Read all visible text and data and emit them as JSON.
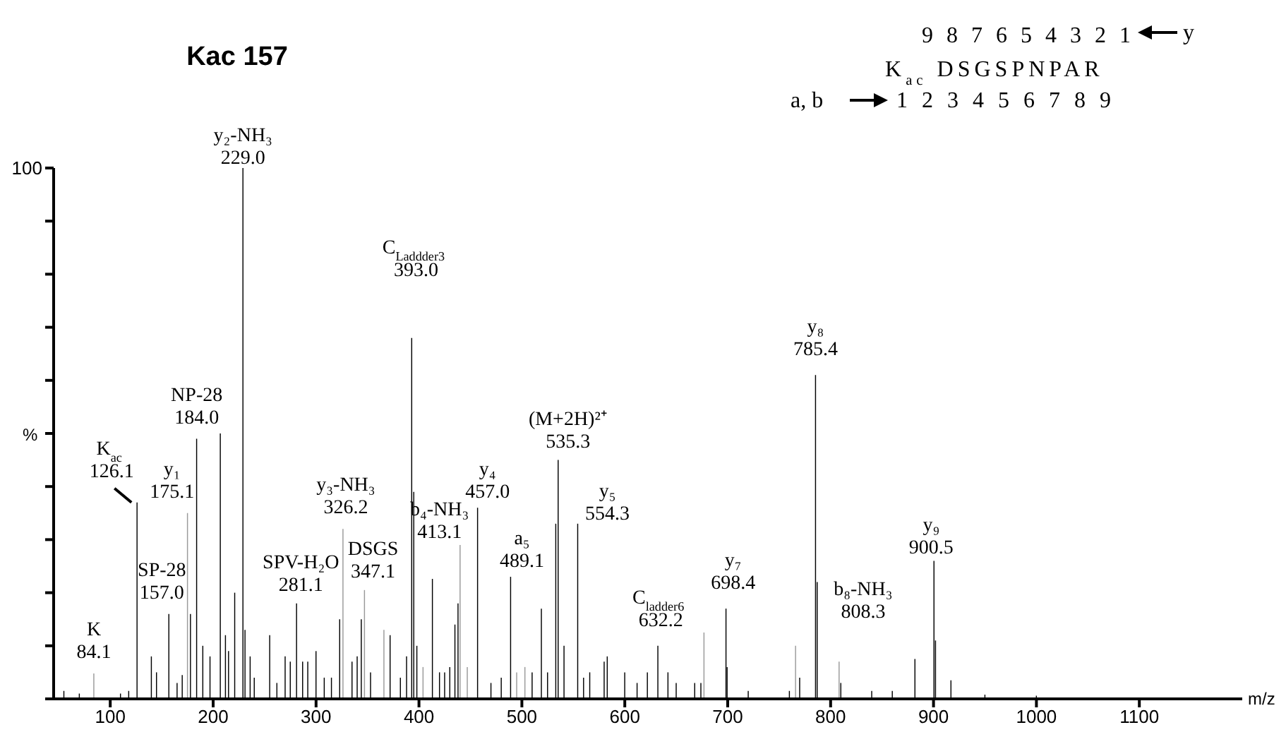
{
  "chart_data": {
    "type": "bar",
    "title": "Kac 157",
    "xlabel": "m/z",
    "ylabel": "%",
    "xlim": [
      45,
      1200
    ],
    "xticks": [
      100,
      200,
      300,
      400,
      500,
      600,
      700,
      800,
      900,
      1000,
      1100
    ],
    "ylim": [
      0,
      100
    ],
    "yticks": [
      0,
      {
        "value": 10,
        "label": null
      },
      {
        "value": 20,
        "label": null
      },
      {
        "value": 30,
        "label": null
      },
      {
        "value": 40,
        "label": null
      },
      {
        "value": 50,
        "label": null
      },
      {
        "value": 60,
        "label": null
      },
      {
        "value": 70,
        "label": null
      },
      {
        "value": 80,
        "label": null
      },
      {
        "value": 90,
        "label": null
      },
      100
    ],
    "x": [
      55,
      70,
      84.1,
      110,
      118,
      126.1,
      140,
      145,
      157,
      165,
      170,
      175.1,
      178,
      184,
      190,
      197,
      207,
      212,
      215,
      221,
      229,
      231,
      236,
      240,
      255,
      262,
      270,
      275,
      281.1,
      287,
      292,
      300,
      308,
      315,
      323,
      326.2,
      335,
      340,
      344,
      347.1,
      353,
      366,
      372,
      382,
      388,
      393,
      395,
      398,
      404,
      413.1,
      420,
      425,
      430,
      435,
      438,
      440,
      447,
      457,
      470,
      480,
      489.1,
      495,
      503,
      510,
      519,
      525,
      533,
      535.3,
      541,
      554.3,
      560,
      566,
      580,
      583,
      600,
      612,
      622,
      632.2,
      642,
      650,
      668,
      674,
      677,
      698.4,
      699.5,
      720,
      760,
      766,
      770,
      785.4,
      787,
      808.3,
      810,
      840,
      860,
      882,
      900.5,
      902,
      917,
      950,
      1000
    ],
    "values": [
      1.5,
      1,
      4.8,
      1,
      1.5,
      37,
      8,
      5,
      16,
      3,
      4.5,
      35,
      16,
      49,
      10,
      8,
      50,
      12,
      9,
      20,
      100,
      13,
      8,
      4,
      12,
      3,
      8,
      7,
      18,
      7,
      7,
      9,
      4,
      4,
      15,
      32,
      7,
      8,
      15,
      20.5,
      5,
      13,
      12,
      4,
      8,
      68,
      39,
      10,
      6,
      22.6,
      5,
      5,
      6,
      14,
      18,
      29,
      6,
      36,
      3,
      4,
      23,
      5,
      6,
      5,
      17,
      5,
      33,
      45,
      10,
      33,
      4,
      5,
      7,
      8,
      5,
      3,
      5,
      10,
      5,
      3,
      3,
      3,
      12.5,
      17,
      6,
      1.5,
      1.5,
      10,
      4,
      61,
      22,
      7,
      3,
      1.5,
      1.5,
      7.5,
      26,
      11,
      3.5,
      0.8,
      0.6
    ],
    "colors": [
      "#000000",
      "#000000",
      "#999999",
      "#000000",
      "#000000",
      "#000000",
      "#000000",
      "#000000",
      "#000000",
      "#000000",
      "#000000",
      "#999999",
      "#000000",
      "#000000",
      "#000000",
      "#000000",
      "#000000",
      "#000000",
      "#000000",
      "#000000",
      "#000000",
      "#000000",
      "#000000",
      "#000000",
      "#000000",
      "#000000",
      "#000000",
      "#000000",
      "#000000",
      "#000000",
      "#000000",
      "#000000",
      "#000000",
      "#000000",
      "#000000",
      "#999999",
      "#000000",
      "#000000",
      "#000000",
      "#999999",
      "#000000",
      "#999999",
      "#000000",
      "#000000",
      "#000000",
      "#000000",
      "#000000",
      "#000000",
      "#999999",
      "#000000",
      "#000000",
      "#000000",
      "#000000",
      "#000000",
      "#000000",
      "#999999",
      "#999999",
      "#000000",
      "#000000",
      "#000000",
      "#000000",
      "#999999",
      "#999999",
      "#000000",
      "#000000",
      "#000000",
      "#000000",
      "#000000",
      "#000000",
      "#000000",
      "#000000",
      "#000000",
      "#000000",
      "#000000",
      "#000000",
      "#000000",
      "#000000",
      "#000000",
      "#000000",
      "#000000",
      "#000000",
      "#000000",
      "#999999",
      "#000000",
      "#000000",
      "#000000",
      "#000000",
      "#999999",
      "#000000",
      "#000000",
      "#000000",
      "#999999",
      "#000000",
      "#000000",
      "#000000",
      "#000000",
      "#000000",
      "#000000",
      "#000000",
      "#000000",
      "#000000"
    ],
    "annotations": [
      {
        "text": "K\n84.1",
        "x": 84.1,
        "y": 4.8
      },
      {
        "text": "K$_{ac}$\n126.1",
        "x": 126.1,
        "y": 37
      },
      {
        "text": "SP-28\n157.0",
        "x": 157,
        "y": 16
      },
      {
        "text": "y₁\n175.1",
        "x": 175.1,
        "y": 35
      },
      {
        "text": "NP-28\n184.0",
        "x": 184,
        "y": 49
      },
      {
        "text": "y₂-NH₃\n229.0",
        "x": 229,
        "y": 100
      },
      {
        "text": "SPV-H₂O\n281.1",
        "x": 281.1,
        "y": 18
      },
      {
        "text": "y₃-NH₃\n326.2",
        "x": 326.2,
        "y": 32
      },
      {
        "text": "DSGS\n347.1",
        "x": 347.1,
        "y": 20.5
      },
      {
        "text": "C$_{Laddder3}$\n393.0",
        "x": 393,
        "y": 68
      },
      {
        "text": "b₄-NH₃\n413.1",
        "x": 413.1,
        "y": 22.6
      },
      {
        "text": "y₄\n457.0",
        "x": 457,
        "y": 36
      },
      {
        "text": "a₅\n489.1",
        "x": 489.1,
        "y": 23
      },
      {
        "text": "(M+2H)²⁺\n535.3",
        "x": 535.3,
        "y": 45
      },
      {
        "text": "y₅\n554.3",
        "x": 554.3,
        "y": 33
      },
      {
        "text": "C$_{ladder6}$\n632.2",
        "x": 632.2,
        "y": 10
      },
      {
        "text": "y₇\n698.4",
        "x": 698.4,
        "y": 17
      },
      {
        "text": "y₈\n785.4",
        "x": 785.4,
        "y": 61
      },
      {
        "text": "b₈-NH₃\n808.3",
        "x": 808.3,
        "y": 7
      },
      {
        "text": "y₉\n900.5",
        "x": 900.5,
        "y": 26
      },
      "9 8 7 6 5 4 3 2 1",
      "y",
      "K$_{ac}$DSGSPNPAR",
      "a, b",
      "1 2 3 4 5 6 7 8 9"
    ]
  }
}
